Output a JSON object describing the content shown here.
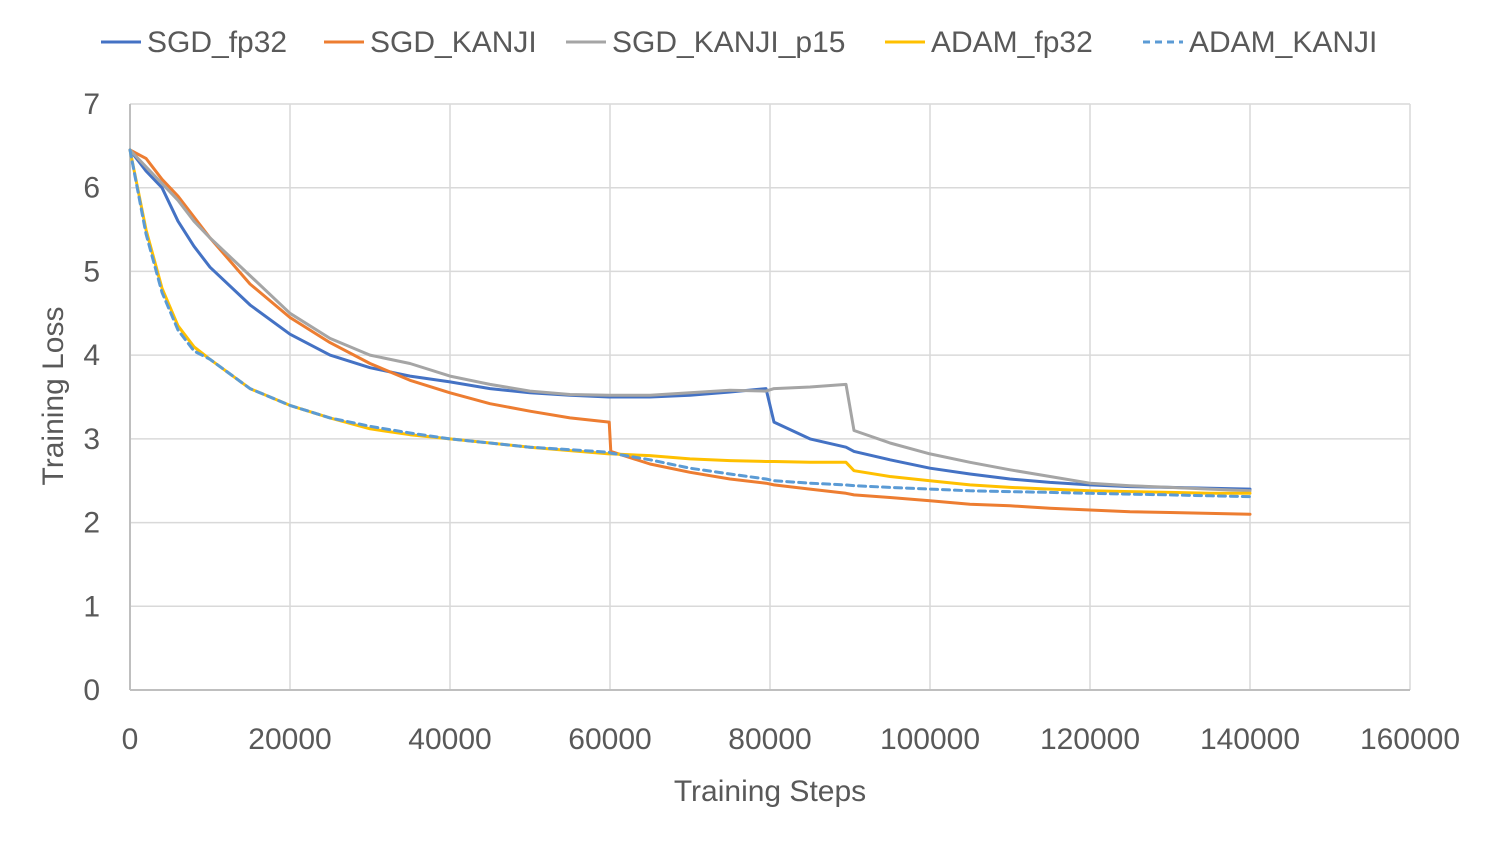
{
  "chart_data": {
    "type": "line",
    "title": "",
    "xlabel": "Training Steps",
    "ylabel": "Training Loss",
    "xlim": [
      0,
      160000
    ],
    "ylim": [
      0,
      7
    ],
    "x_ticks": [
      "0",
      "20000",
      "40000",
      "60000",
      "80000",
      "100000",
      "120000",
      "140000",
      "160000"
    ],
    "y_ticks": [
      "0",
      "1",
      "2",
      "3",
      "4",
      "5",
      "6",
      "7"
    ],
    "grid": true,
    "legend_position": "top",
    "x": [
      0,
      2000,
      4000,
      6000,
      8000,
      10000,
      15000,
      20000,
      25000,
      30000,
      35000,
      40000,
      45000,
      50000,
      55000,
      59900,
      60100,
      65000,
      70000,
      75000,
      79500,
      80500,
      85000,
      89500,
      90500,
      95000,
      100000,
      105000,
      110000,
      115000,
      120000,
      125000,
      130000,
      135000,
      140000
    ],
    "series": [
      {
        "name": "SGD_fp32",
        "color": "#4472C4",
        "dashed": false,
        "values": [
          6.45,
          6.2,
          6.0,
          5.6,
          5.3,
          5.05,
          4.6,
          4.25,
          4.0,
          3.85,
          3.75,
          3.68,
          3.6,
          3.55,
          3.52,
          3.5,
          3.5,
          3.5,
          3.52,
          3.56,
          3.6,
          3.2,
          3.0,
          2.9,
          2.85,
          2.75,
          2.65,
          2.58,
          2.52,
          2.48,
          2.45,
          2.43,
          2.42,
          2.41,
          2.4
        ]
      },
      {
        "name": "SGD_KANJI",
        "color": "#ED7D31",
        "dashed": false,
        "values": [
          6.45,
          6.35,
          6.1,
          5.9,
          5.65,
          5.4,
          4.85,
          4.45,
          4.15,
          3.9,
          3.7,
          3.55,
          3.42,
          3.33,
          3.25,
          3.2,
          2.85,
          2.7,
          2.6,
          2.52,
          2.47,
          2.45,
          2.4,
          2.35,
          2.33,
          2.3,
          2.26,
          2.22,
          2.2,
          2.17,
          2.15,
          2.13,
          2.12,
          2.11,
          2.1
        ]
      },
      {
        "name": "SGD_KANJI_p15",
        "color": "#A5A5A5",
        "dashed": false,
        "values": [
          6.45,
          6.25,
          6.05,
          5.85,
          5.6,
          5.4,
          4.95,
          4.5,
          4.2,
          4.0,
          3.9,
          3.75,
          3.65,
          3.57,
          3.53,
          3.52,
          3.52,
          3.52,
          3.55,
          3.58,
          3.57,
          3.6,
          3.62,
          3.65,
          3.1,
          2.95,
          2.82,
          2.72,
          2.63,
          2.55,
          2.47,
          2.44,
          2.42,
          2.4,
          2.38
        ]
      },
      {
        "name": "ADAM_fp32",
        "color": "#FFC000",
        "dashed": false,
        "values": [
          6.45,
          5.5,
          4.8,
          4.35,
          4.1,
          3.95,
          3.6,
          3.4,
          3.25,
          3.12,
          3.05,
          3.0,
          2.95,
          2.9,
          2.86,
          2.82,
          2.82,
          2.8,
          2.76,
          2.74,
          2.73,
          2.73,
          2.72,
          2.72,
          2.62,
          2.55,
          2.5,
          2.45,
          2.42,
          2.4,
          2.38,
          2.37,
          2.36,
          2.35,
          2.35
        ]
      },
      {
        "name": "ADAM_KANJI",
        "color": "#5B9BD5",
        "dashed": true,
        "values": [
          6.45,
          5.45,
          4.75,
          4.3,
          4.05,
          3.95,
          3.6,
          3.4,
          3.25,
          3.15,
          3.07,
          3.0,
          2.95,
          2.9,
          2.87,
          2.84,
          2.83,
          2.75,
          2.65,
          2.58,
          2.52,
          2.5,
          2.47,
          2.45,
          2.44,
          2.42,
          2.4,
          2.38,
          2.37,
          2.36,
          2.35,
          2.34,
          2.33,
          2.32,
          2.31
        ]
      }
    ]
  }
}
